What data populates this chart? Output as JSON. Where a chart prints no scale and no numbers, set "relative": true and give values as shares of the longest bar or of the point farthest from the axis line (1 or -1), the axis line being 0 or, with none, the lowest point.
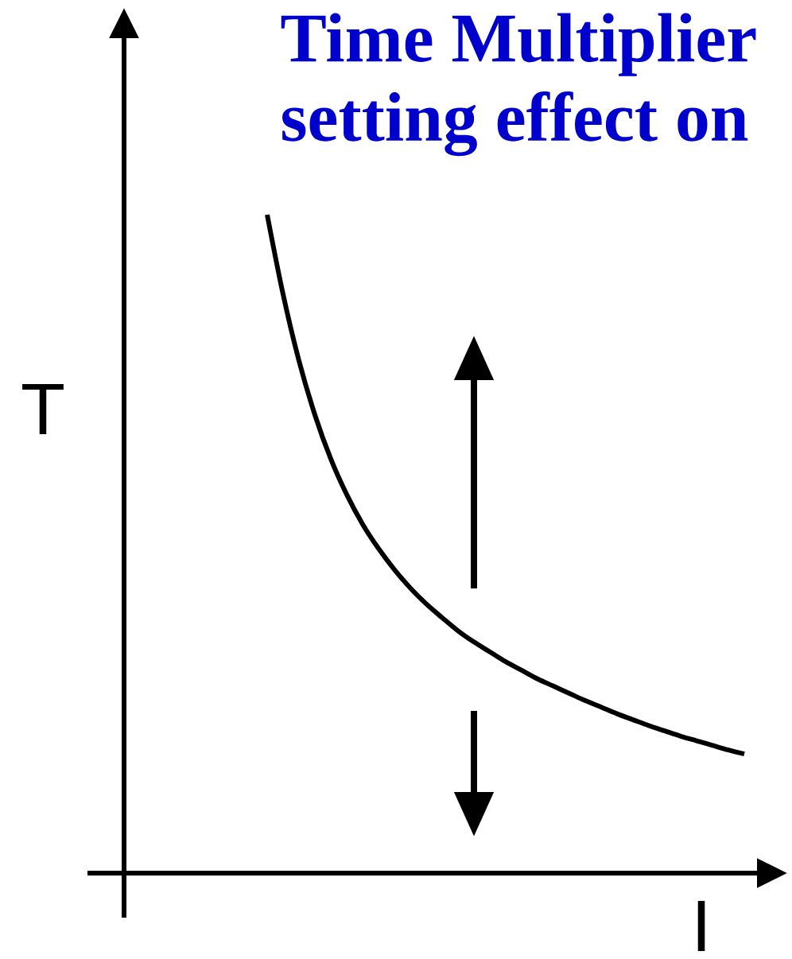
{
  "chart_data": {
    "type": "line",
    "title": "Time Multiplier setting effect on",
    "xlabel": "I",
    "ylabel": "T",
    "relative": true,
    "marker": "none",
    "line_style": "solid",
    "categories": [
      null,
      null,
      null,
      null,
      null,
      null,
      null,
      null,
      null,
      null,
      null,
      null,
      null,
      null,
      null,
      null,
      null,
      null,
      null,
      null,
      null,
      null,
      null,
      null,
      null,
      null,
      null,
      null,
      null,
      null,
      null
    ],
    "series": [
      {
        "color": "#000000",
        "values": [
          1.0,
          0.879,
          0.778,
          0.696,
          0.629,
          0.575,
          0.53,
          0.493,
          0.461,
          0.433,
          0.409,
          0.388,
          0.368,
          0.351,
          0.336,
          0.321,
          0.308,
          0.295,
          0.284,
          0.273,
          0.262,
          0.252,
          0.242,
          0.233,
          0.224,
          0.216,
          0.208,
          0.201,
          0.194,
          0.187,
          0.181
        ]
      }
    ]
  }
}
